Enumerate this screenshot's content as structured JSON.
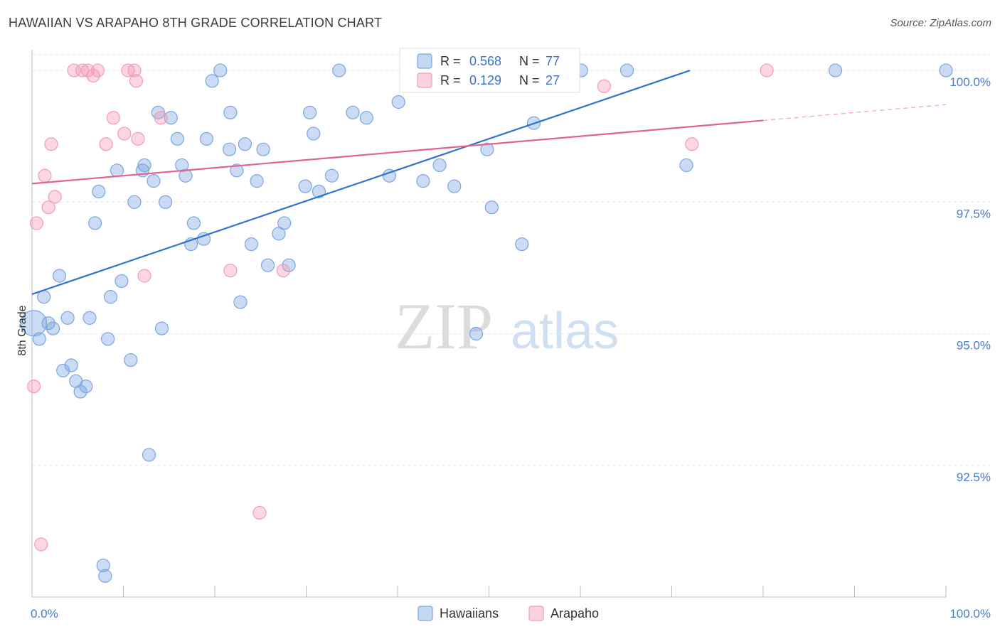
{
  "title": "HAWAIIAN VS ARAPAHO 8TH GRADE CORRELATION CHART",
  "source": "Source: ZipAtlas.com",
  "watermark": {
    "zip": "ZIP",
    "atlas": "atlas"
  },
  "chart_data": {
    "type": "scatter",
    "ylabel": "8th Grade",
    "xlim": [
      0,
      100
    ],
    "ylim": [
      90.0,
      100.5
    ],
    "x_tick_labels": [
      {
        "value": 0,
        "label": "0.0%"
      },
      {
        "value": 100,
        "label": "100.0%"
      }
    ],
    "y_tick_labels": [
      {
        "value": 100.0,
        "label": "100.0%"
      },
      {
        "value": 97.5,
        "label": "97.5%"
      },
      {
        "value": 95.0,
        "label": "95.0%"
      },
      {
        "value": 92.5,
        "label": "92.5%"
      }
    ],
    "legend": {
      "r_label": "R =",
      "n_label": "N =",
      "entries": [
        {
          "r": "0.568",
          "n": "77"
        },
        {
          "r": "0.129",
          "n": "27"
        }
      ]
    },
    "series": [
      {
        "name": "Hawaiians",
        "color": "#7aa6e0",
        "line_color": "#2f73d0",
        "trend": {
          "x0": 0,
          "y0": 95.75,
          "x1": 72,
          "y1": 100.0,
          "dashed_to": null
        },
        "points": [
          [
            0.2,
            95.2
          ],
          [
            0.8,
            94.9
          ],
          [
            1.3,
            95.7
          ],
          [
            1.8,
            95.2
          ],
          [
            2.3,
            95.1
          ],
          [
            3,
            96.1
          ],
          [
            3.4,
            94.3
          ],
          [
            3.9,
            95.3
          ],
          [
            4.3,
            94.4
          ],
          [
            4.8,
            94.1
          ],
          [
            5.3,
            93.9
          ],
          [
            5.9,
            94.0
          ],
          [
            6.3,
            95.3
          ],
          [
            7.3,
            97.7
          ],
          [
            6.9,
            97.1
          ],
          [
            7.8,
            90.6
          ],
          [
            8.3,
            94.9
          ],
          [
            8.6,
            95.7
          ],
          [
            9.3,
            98.1
          ],
          [
            9.8,
            96.0
          ],
          [
            10.8,
            94.5
          ],
          [
            11.2,
            97.5
          ],
          [
            12.1,
            98.1
          ],
          [
            12.3,
            98.2
          ],
          [
            12.8,
            92.7
          ],
          [
            13.3,
            97.9
          ],
          [
            13.8,
            99.2
          ],
          [
            14.2,
            95.1
          ],
          [
            14.6,
            97.5
          ],
          [
            15.2,
            99.1
          ],
          [
            15.9,
            98.7
          ],
          [
            16.4,
            98.2
          ],
          [
            16.8,
            98.0
          ],
          [
            17.4,
            96.7
          ],
          [
            17.7,
            97.1
          ],
          [
            18.8,
            96.8
          ],
          [
            19.1,
            98.7
          ],
          [
            19.7,
            99.8
          ],
          [
            20.6,
            100.0
          ],
          [
            21.6,
            98.5
          ],
          [
            21.7,
            99.2
          ],
          [
            22.4,
            98.1
          ],
          [
            22.8,
            95.6
          ],
          [
            23.3,
            98.6
          ],
          [
            24.0,
            96.7
          ],
          [
            24.6,
            97.9
          ],
          [
            25.3,
            98.5
          ],
          [
            25.8,
            96.3
          ],
          [
            27.0,
            96.9
          ],
          [
            27.6,
            97.1
          ],
          [
            28.1,
            96.3
          ],
          [
            29.9,
            97.8
          ],
          [
            30.4,
            99.2
          ],
          [
            30.8,
            98.8
          ],
          [
            31.4,
            97.7
          ],
          [
            32.8,
            98.0
          ],
          [
            33.6,
            100.0
          ],
          [
            35.1,
            99.2
          ],
          [
            36.6,
            99.1
          ],
          [
            39.1,
            98.0
          ],
          [
            40.1,
            99.4
          ],
          [
            42.8,
            97.9
          ],
          [
            44.6,
            98.2
          ],
          [
            44.9,
            100.0
          ],
          [
            46.2,
            97.8
          ],
          [
            48.6,
            95.0
          ],
          [
            49.4,
            100.0
          ],
          [
            49.8,
            98.5
          ],
          [
            50.3,
            97.4
          ],
          [
            53.6,
            96.7
          ],
          [
            54.9,
            99.0
          ],
          [
            60.1,
            100.0
          ],
          [
            65.1,
            100.0
          ],
          [
            71.6,
            98.2
          ],
          [
            87.9,
            100.0
          ],
          [
            100.0,
            100.0
          ],
          [
            8.0,
            90.4
          ]
        ]
      },
      {
        "name": "Arapaho",
        "color": "#f29bb8",
        "line_color": "#e2638f",
        "trend": {
          "x0": 0,
          "y0": 97.85,
          "x1": 80,
          "y1": 99.05,
          "dashed_to": {
            "x": 100,
            "y": 99.35
          }
        },
        "points": [
          [
            0.2,
            94.0
          ],
          [
            0.5,
            97.1
          ],
          [
            1.0,
            91.0
          ],
          [
            1.4,
            98.0
          ],
          [
            1.8,
            97.4
          ],
          [
            2.1,
            98.6
          ],
          [
            2.5,
            97.6
          ],
          [
            4.6,
            100.0
          ],
          [
            5.5,
            100.0
          ],
          [
            6.1,
            100.0
          ],
          [
            6.7,
            99.9
          ],
          [
            7.2,
            100.0
          ],
          [
            8.1,
            98.6
          ],
          [
            8.9,
            99.1
          ],
          [
            10.1,
            98.8
          ],
          [
            10.5,
            100.0
          ],
          [
            11.2,
            100.0
          ],
          [
            11.6,
            98.7
          ],
          [
            12.3,
            96.1
          ],
          [
            14.1,
            99.1
          ],
          [
            21.7,
            96.2
          ],
          [
            24.9,
            91.6
          ],
          [
            27.5,
            96.2
          ],
          [
            62.6,
            99.7
          ],
          [
            72.2,
            98.6
          ],
          [
            80.4,
            100.0
          ],
          [
            11.4,
            99.8
          ]
        ]
      }
    ]
  }
}
